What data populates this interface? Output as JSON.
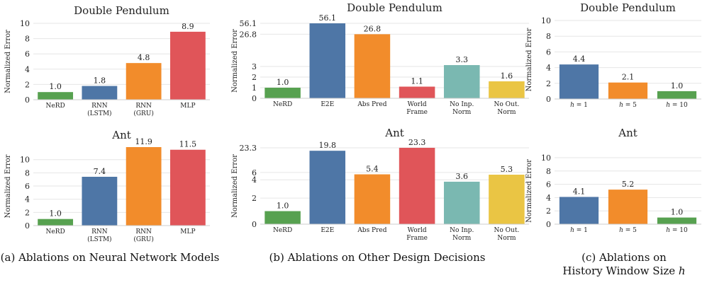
{
  "colors": {
    "green": "#57a150",
    "blue": "#4e76a6",
    "orange": "#f28c2b",
    "red": "#e05559",
    "teal": "#7ab8b1",
    "yellow": "#eac544",
    "grid": "#e6e6e6"
  },
  "captions": {
    "a": "(a) Ablations on Neural Network Models",
    "b": "(b) Ablations on Other Design Decisions",
    "c_line1": "(c) Ablations on",
    "c_line2": "History Window Size ",
    "c_var": "h"
  },
  "chart_data": [
    {
      "id": "a1",
      "type": "bar",
      "title": "Double Pendulum",
      "ylabel": "Normalized Error",
      "categories": [
        "NeRD",
        "RNN\n(LSTM)",
        "RNN\n(GRU)",
        "MLP"
      ],
      "values": [
        1.0,
        1.8,
        4.8,
        8.9
      ],
      "value_labels": [
        "1.0",
        "1.8",
        "4.8",
        "8.9"
      ],
      "colors": [
        "green",
        "blue",
        "orange",
        "red"
      ],
      "ylim": [
        0,
        10
      ],
      "yticks": [
        0,
        2,
        4,
        6,
        8,
        10
      ],
      "ytick_labels": [
        "0",
        "2",
        "4",
        "6",
        "8",
        "10"
      ],
      "grid": true
    },
    {
      "id": "b1",
      "type": "bar",
      "title": "Double Pendulum",
      "ylabel": "Normalized Error",
      "categories": [
        "NeRD",
        "E2E",
        "Abs Pred",
        "World\nFrame",
        "No Inp.\nNorm",
        "No Out.\nNorm"
      ],
      "values": [
        1.0,
        56.1,
        26.8,
        1.1,
        3.3,
        1.6
      ],
      "value_labels": [
        "1.0",
        "56.1",
        "26.8",
        "1.1",
        "3.3",
        "1.6"
      ],
      "colors": [
        "green",
        "blue",
        "orange",
        "red",
        "teal",
        "yellow"
      ],
      "scale": "symlog",
      "ylim": [
        0,
        56.1
      ],
      "yticks": [
        0,
        1,
        2,
        3,
        26.8,
        56.1
      ],
      "ytick_labels": [
        "0",
        "1",
        "2",
        "3",
        "26.8",
        "56.1"
      ],
      "grid": true
    },
    {
      "id": "c1",
      "type": "bar",
      "title": "Double Pendulum",
      "ylabel": "Normalized Error",
      "categories": [
        "h = 1",
        "h = 5",
        "h = 10"
      ],
      "values": [
        4.4,
        2.1,
        1.0
      ],
      "value_labels": [
        "4.4",
        "2.1",
        "1.0"
      ],
      "colors": [
        "blue",
        "orange",
        "green"
      ],
      "ylim": [
        0,
        10
      ],
      "yticks": [
        0,
        2,
        4,
        6,
        8,
        10
      ],
      "ytick_labels": [
        "0",
        "2",
        "4",
        "6",
        "8",
        "10"
      ],
      "grid": true
    },
    {
      "id": "a2",
      "type": "bar",
      "title": "Ant",
      "ylabel": "Normalized Error",
      "categories": [
        "NeRD",
        "RNN\n(LSTM)",
        "RNN\n(GRU)",
        "MLP"
      ],
      "values": [
        1.0,
        7.4,
        11.9,
        11.5
      ],
      "value_labels": [
        "1.0",
        "7.4",
        "11.9",
        "11.5"
      ],
      "colors": [
        "green",
        "blue",
        "orange",
        "red"
      ],
      "ylim": [
        0,
        11.9
      ],
      "yticks": [
        0,
        2,
        4,
        6,
        8,
        10
      ],
      "ytick_labels": [
        "0",
        "2",
        "4",
        "6",
        "8",
        "10"
      ],
      "grid": true
    },
    {
      "id": "b2",
      "type": "bar",
      "title": "Ant",
      "ylabel": "Normalized Error",
      "categories": [
        "NeRD",
        "E2E",
        "Abs Pred",
        "World\nFrame",
        "No Inp.\nNorm",
        "No Out.\nNorm"
      ],
      "values": [
        1.0,
        19.8,
        5.4,
        23.3,
        3.6,
        5.3
      ],
      "value_labels": [
        "1.0",
        "19.8",
        "5.4",
        "23.3",
        "3.6",
        "5.3"
      ],
      "colors": [
        "green",
        "blue",
        "orange",
        "red",
        "teal",
        "yellow"
      ],
      "scale": "symlog",
      "ylim": [
        0,
        23.3
      ],
      "yticks": [
        0,
        2,
        4,
        6,
        23.3
      ],
      "ytick_labels": [
        "0",
        "2",
        "4",
        "6",
        "23.3"
      ],
      "grid": true
    },
    {
      "id": "c2",
      "type": "bar",
      "title": "Ant",
      "ylabel": "Normalized Error",
      "categories": [
        "h = 1",
        "h = 5",
        "h = 10"
      ],
      "values": [
        4.1,
        5.2,
        1.0
      ],
      "value_labels": [
        "4.1",
        "5.2",
        "1.0"
      ],
      "colors": [
        "blue",
        "orange",
        "green"
      ],
      "ylim": [
        0,
        10
      ],
      "yticks": [
        0,
        2,
        4,
        6,
        8,
        10
      ],
      "ytick_labels": [
        "0",
        "2",
        "4",
        "6",
        "8",
        "10"
      ],
      "grid": true
    }
  ]
}
